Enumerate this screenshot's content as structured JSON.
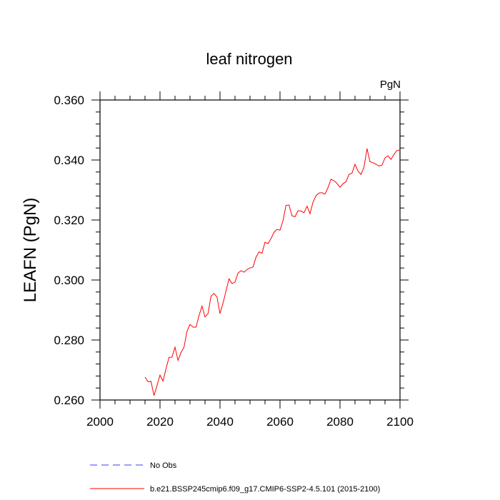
{
  "chart_data": {
    "type": "line",
    "title": "leaf nitrogen",
    "units": "PgN",
    "xlabel": "",
    "ylabel": "LEAFN  (PgN)",
    "xlim": [
      2000,
      2100
    ],
    "ylim": [
      0.26,
      0.36
    ],
    "x_ticks": [
      2000,
      2020,
      2040,
      2060,
      2080,
      2100
    ],
    "x_tick_labels": [
      "2000",
      "2020",
      "2040",
      "2060",
      "2080",
      "2100"
    ],
    "y_ticks": [
      0.26,
      0.28,
      0.3,
      0.32,
      0.34,
      0.36
    ],
    "y_tick_labels": [
      "0.260",
      "0.280",
      "0.300",
      "0.320",
      "0.340",
      "0.360"
    ],
    "grid": false,
    "legend_placement": "below-left",
    "series": [
      {
        "name": "b.e21.BSSP245cmip6.f09_g17.CMIP6-SSP2-4.5.101 (2015-2100)",
        "color": "#ff0000",
        "dash": "solid",
        "x": [
          2015,
          2016,
          2017,
          2018,
          2019,
          2020,
          2021,
          2022,
          2023,
          2024,
          2025,
          2026,
          2027,
          2028,
          2029,
          2030,
          2031,
          2032,
          2033,
          2034,
          2035,
          2036,
          2037,
          2038,
          2039,
          2040,
          2041,
          2042,
          2043,
          2044,
          2045,
          2046,
          2047,
          2048,
          2049,
          2050,
          2051,
          2052,
          2053,
          2054,
          2055,
          2056,
          2057,
          2058,
          2059,
          2060,
          2061,
          2062,
          2063,
          2064,
          2065,
          2066,
          2067,
          2068,
          2069,
          2070,
          2071,
          2072,
          2073,
          2074,
          2075,
          2076,
          2077,
          2078,
          2079,
          2080,
          2081,
          2082,
          2083,
          2084,
          2085,
          2086,
          2087,
          2088,
          2089,
          2090,
          2091,
          2092,
          2093,
          2094,
          2095,
          2096,
          2097,
          2098,
          2099,
          2100
        ],
        "y": [
          0.2676,
          0.2661,
          0.2662,
          0.2615,
          0.2648,
          0.2683,
          0.2663,
          0.2704,
          0.2742,
          0.2743,
          0.2776,
          0.2732,
          0.2758,
          0.2776,
          0.2829,
          0.2852,
          0.2843,
          0.2843,
          0.2881,
          0.2913,
          0.2877,
          0.2888,
          0.2946,
          0.2955,
          0.2943,
          0.2888,
          0.2923,
          0.2963,
          0.3004,
          0.2988,
          0.2993,
          0.3023,
          0.3031,
          0.3026,
          0.3035,
          0.304,
          0.3043,
          0.3076,
          0.3094,
          0.3089,
          0.3126,
          0.3121,
          0.3138,
          0.3159,
          0.3169,
          0.3166,
          0.3198,
          0.3249,
          0.325,
          0.3214,
          0.3211,
          0.3231,
          0.323,
          0.3224,
          0.3246,
          0.3221,
          0.3259,
          0.3281,
          0.329,
          0.3291,
          0.3286,
          0.3308,
          0.3336,
          0.3331,
          0.3322,
          0.3309,
          0.3321,
          0.3328,
          0.3352,
          0.3356,
          0.3386,
          0.3363,
          0.3352,
          0.3376,
          0.3438,
          0.3394,
          0.3391,
          0.3386,
          0.338,
          0.3383,
          0.3407,
          0.3414,
          0.3402,
          0.3419,
          0.3432,
          0.3433
        ]
      }
    ],
    "legend": [
      {
        "label": "No Obs",
        "color": "#3a3aff",
        "dash": "dashed"
      },
      {
        "label": "b.e21.BSSP245cmip6.f09_g17.CMIP6-SSP2-4.5.101 (2015-2100)",
        "color": "#ff0000",
        "dash": "solid"
      }
    ]
  }
}
